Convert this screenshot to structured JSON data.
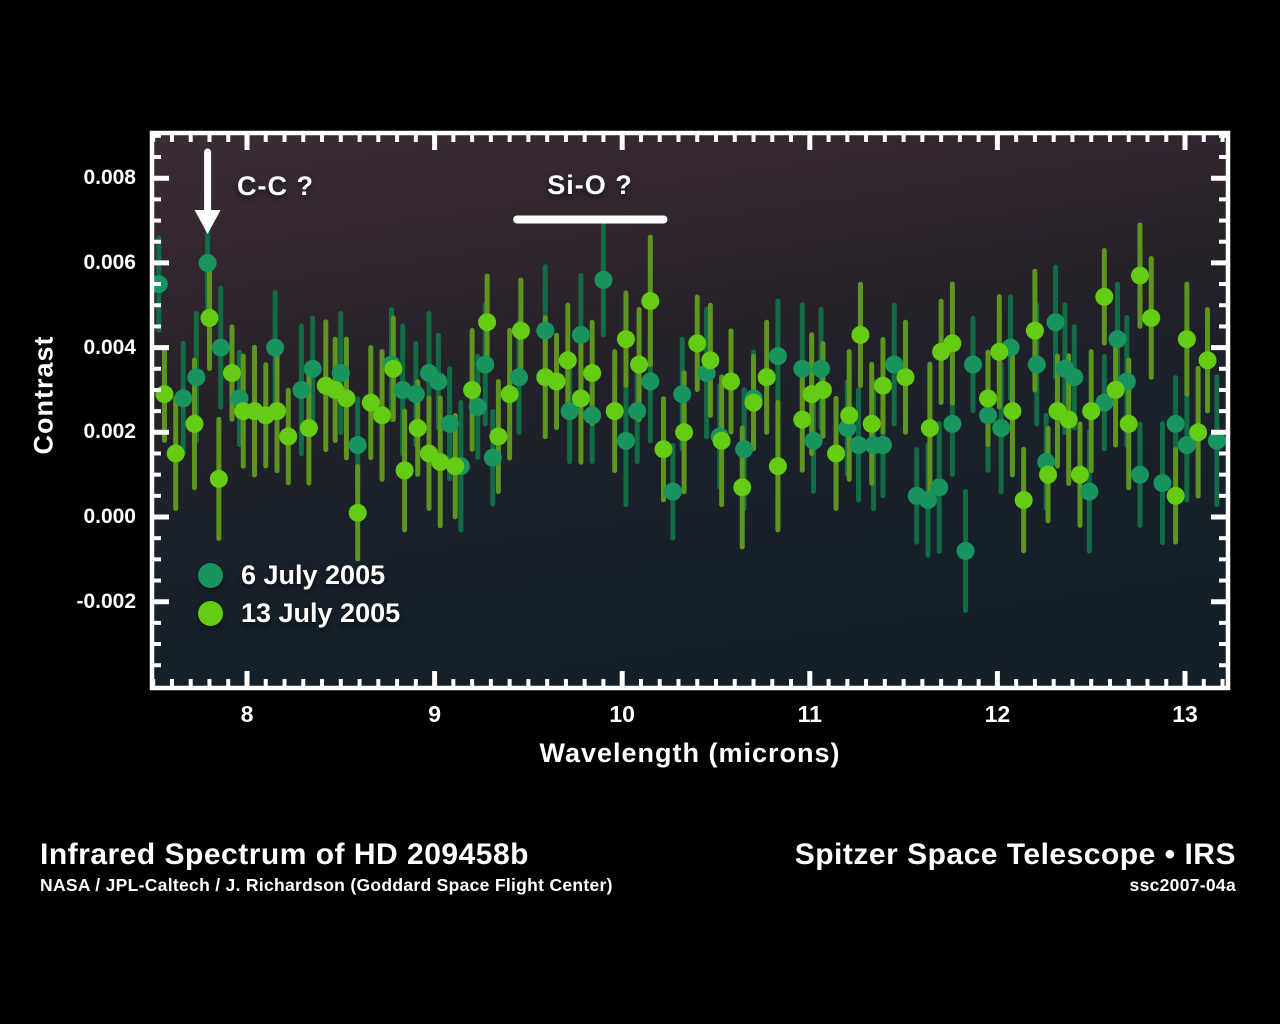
{
  "figure": {
    "y_axis_label": "Contrast",
    "x_axis_label": "Wavelength (microns)",
    "y_tick_labels": [
      "0.008",
      "0.006",
      "0.004",
      "0.002",
      "0.000",
      "-0.002"
    ],
    "x_tick_labels": [
      "8",
      "9",
      "10",
      "11",
      "12",
      "13"
    ],
    "annotations": {
      "cc_label": "C-C ?",
      "sio_label": "Si-O ?"
    },
    "legend": [
      {
        "label": "6 July 2005",
        "color": "#18945e"
      },
      {
        "label": "13 July 2005",
        "color": "#63cc13"
      }
    ]
  },
  "footer": {
    "title": "Infrared Spectrum of HD 209458b",
    "credit": "NASA / JPL-Caltech / J. Richardson (Goddard Space Flight Center)",
    "right_title": "Spitzer Space Telescope • IRS",
    "right_id": "ssc2007-04a"
  },
  "colors": {
    "background": "#000000",
    "frame": "#ffffff",
    "plot_gradient_top": "#3c2c34",
    "plot_gradient_mid": "#262129",
    "plot_gradient_bottom": "#13202a",
    "series1_dot": "#18945e",
    "series1_bar": "#116b45",
    "series2_dot": "#63cc13",
    "series2_bar": "#5d951e"
  },
  "chart_data": {
    "type": "scatter",
    "title": "Infrared Spectrum of HD 209458b",
    "xlabel": "Wavelength (microns)",
    "ylabel": "Contrast",
    "xlim": [
      7.49,
      13.23
    ],
    "ylim": [
      -0.004,
      0.00907
    ],
    "x_ticks": [
      8,
      9,
      10,
      11,
      12,
      13
    ],
    "y_ticks": [
      0.008,
      0.006,
      0.004,
      0.002,
      0,
      -0.002
    ],
    "x_minor_step": 0.1,
    "y_minor_step": 0.0005,
    "grid": false,
    "legend_position": "lower left",
    "error_bar_typical": 0.0013,
    "annotations": [
      {
        "text": "C-C ?",
        "type": "arrow-down",
        "x": 7.79
      },
      {
        "text": "Si-O ?",
        "type": "span-line",
        "x_from": 9.44,
        "x_to": 10.22
      }
    ],
    "series": [
      {
        "name": "6 July 2005",
        "marker_color": "#18945e",
        "bar_color": "#116b45",
        "err": 0.0013,
        "points": [
          [
            7.53,
            0.0055
          ],
          [
            7.66,
            0.0028
          ],
          [
            7.73,
            0.0033
          ],
          [
            7.79,
            0.006
          ],
          [
            7.86,
            0.004
          ],
          [
            7.96,
            0.0028
          ],
          [
            8.15,
            0.004
          ],
          [
            8.29,
            0.003
          ],
          [
            8.35,
            0.0035
          ],
          [
            8.5,
            0.0034
          ],
          [
            8.59,
            0.0017
          ],
          [
            8.77,
            0.0036
          ],
          [
            8.83,
            0.003
          ],
          [
            8.9,
            0.0029
          ],
          [
            8.97,
            0.0034
          ],
          [
            9.02,
            0.0032
          ],
          [
            9.08,
            0.0022
          ],
          [
            9.14,
            0.0012
          ],
          [
            9.23,
            0.0026
          ],
          [
            9.27,
            0.0036
          ],
          [
            9.31,
            0.0014
          ],
          [
            9.45,
            0.0033
          ],
          [
            9.59,
            0.0044
          ],
          [
            9.72,
            0.0025
          ],
          [
            9.78,
            0.0043
          ],
          [
            9.84,
            0.0024
          ],
          [
            9.9,
            0.0056
          ],
          [
            10.02,
            0.0018
          ],
          [
            10.08,
            0.0025
          ],
          [
            10.15,
            0.0032
          ],
          [
            10.27,
            0.0006
          ],
          [
            10.32,
            0.0029
          ],
          [
            10.45,
            0.0034
          ],
          [
            10.52,
            0.0019
          ],
          [
            10.65,
            0.0016
          ],
          [
            10.7,
            0.0028
          ],
          [
            10.83,
            0.0038
          ],
          [
            10.96,
            0.0035
          ],
          [
            11.02,
            0.0018
          ],
          [
            11.06,
            0.0035
          ],
          [
            11.2,
            0.0021
          ],
          [
            11.26,
            0.0017
          ],
          [
            11.34,
            0.0017
          ],
          [
            11.39,
            0.0017
          ],
          [
            11.45,
            0.0036
          ],
          [
            11.57,
            0.0005
          ],
          [
            11.63,
            0.0004
          ],
          [
            11.69,
            0.0007
          ],
          [
            11.76,
            0.0022
          ],
          [
            11.83,
            -0.0008
          ],
          [
            11.87,
            0.0036
          ],
          [
            11.95,
            0.0024
          ],
          [
            12.02,
            0.0021
          ],
          [
            12.07,
            0.004
          ],
          [
            12.21,
            0.0036
          ],
          [
            12.26,
            0.0013
          ],
          [
            12.31,
            0.0046
          ],
          [
            12.36,
            0.0035
          ],
          [
            12.41,
            0.0033
          ],
          [
            12.49,
            0.0006
          ],
          [
            12.57,
            0.0027
          ],
          [
            12.64,
            0.0042
          ],
          [
            12.69,
            0.0032
          ],
          [
            12.76,
            0.001
          ],
          [
            12.88,
            0.0008
          ],
          [
            12.95,
            0.0022
          ],
          [
            13.01,
            0.0017
          ],
          [
            13.17,
            0.0018
          ]
        ]
      },
      {
        "name": "13 July 2005",
        "marker_color": "#63cc13",
        "bar_color": "#5d951e",
        "err": 0.0013,
        "points": [
          [
            7.56,
            0.0029
          ],
          [
            7.62,
            0.0015
          ],
          [
            7.72,
            0.0022
          ],
          [
            7.8,
            0.0047
          ],
          [
            7.85,
            0.0009
          ],
          [
            7.92,
            0.0034
          ],
          [
            7.98,
            0.0025
          ],
          [
            8.04,
            0.0025
          ],
          [
            8.1,
            0.0024
          ],
          [
            8.16,
            0.0025
          ],
          [
            8.22,
            0.0019
          ],
          [
            8.33,
            0.0021
          ],
          [
            8.42,
            0.0031
          ],
          [
            8.47,
            0.003
          ],
          [
            8.53,
            0.0028
          ],
          [
            8.59,
            0.0001
          ],
          [
            8.66,
            0.0027
          ],
          [
            8.72,
            0.0024
          ],
          [
            8.78,
            0.0035
          ],
          [
            8.84,
            0.0011
          ],
          [
            8.91,
            0.0021
          ],
          [
            8.97,
            0.0015
          ],
          [
            9.03,
            0.0013
          ],
          [
            9.11,
            0.0012
          ],
          [
            9.2,
            0.003
          ],
          [
            9.28,
            0.0046
          ],
          [
            9.34,
            0.0019
          ],
          [
            9.4,
            0.0029
          ],
          [
            9.46,
            0.0044
          ],
          [
            9.59,
            0.0033
          ],
          [
            9.65,
            0.0032
          ],
          [
            9.71,
            0.0037
          ],
          [
            9.78,
            0.0028
          ],
          [
            9.84,
            0.0034
          ],
          [
            9.96,
            0.0025
          ],
          [
            10.02,
            0.0042
          ],
          [
            10.09,
            0.0036
          ],
          [
            10.15,
            0.0051
          ],
          [
            10.22,
            0.0016
          ],
          [
            10.33,
            0.002
          ],
          [
            10.4,
            0.0041
          ],
          [
            10.47,
            0.0037
          ],
          [
            10.53,
            0.0018
          ],
          [
            10.58,
            0.0032
          ],
          [
            10.64,
            0.0007
          ],
          [
            10.7,
            0.0027
          ],
          [
            10.77,
            0.0033
          ],
          [
            10.83,
            0.0012
          ],
          [
            10.96,
            0.0023
          ],
          [
            11.01,
            0.0029
          ],
          [
            11.07,
            0.003
          ],
          [
            11.14,
            0.0015
          ],
          [
            11.21,
            0.0024
          ],
          [
            11.27,
            0.0043
          ],
          [
            11.33,
            0.0022
          ],
          [
            11.39,
            0.0031
          ],
          [
            11.51,
            0.0033
          ],
          [
            11.64,
            0.0021
          ],
          [
            11.7,
            0.0039
          ],
          [
            11.76,
            0.0041
          ],
          [
            11.95,
            0.0028
          ],
          [
            12.01,
            0.0039
          ],
          [
            12.08,
            0.0025
          ],
          [
            12.14,
            0.0004
          ],
          [
            12.2,
            0.0044
          ],
          [
            12.27,
            0.001
          ],
          [
            12.32,
            0.0025
          ],
          [
            12.38,
            0.0023
          ],
          [
            12.44,
            0.001
          ],
          [
            12.5,
            0.0025
          ],
          [
            12.57,
            0.0052
          ],
          [
            12.63,
            0.003
          ],
          [
            12.7,
            0.0022
          ],
          [
            12.76,
            0.0057
          ],
          [
            12.82,
            0.0047
          ],
          [
            12.95,
            0.0005
          ],
          [
            13.01,
            0.0042
          ],
          [
            13.07,
            0.002
          ],
          [
            13.12,
            0.0037
          ]
        ]
      }
    ]
  }
}
